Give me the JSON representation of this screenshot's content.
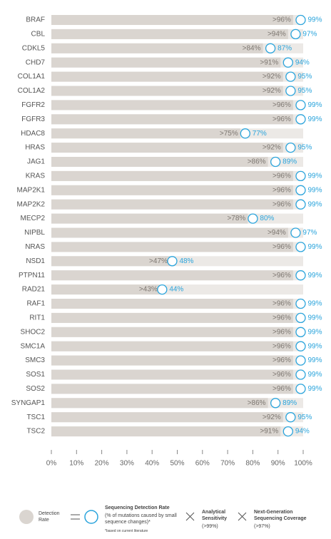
{
  "chart_data": {
    "type": "bar",
    "categories": [
      "BRAF",
      "CBL",
      "CDKL5",
      "CHD7",
      "COL1A1",
      "COL1A2",
      "FGFR2",
      "FGFR3",
      "HDAC8",
      "HRAS",
      "JAG1",
      "KRAS",
      "MAP2K1",
      "MAP2K2",
      "MECP2",
      "NIPBL",
      "NRAS",
      "NSD1",
      "PTPN11",
      "RAD21",
      "RAF1",
      "RIT1",
      "SHOC2",
      "SMC1A",
      "SMC3",
      "SOS1",
      "SOS2",
      "SYNGAP1",
      "TSC1",
      "TSC2"
    ],
    "series": [
      {
        "name": "Detection Rate",
        "color": "#dad5d0",
        "values": [
          96,
          94,
          84,
          91,
          92,
          92,
          96,
          96,
          75,
          92,
          86,
          96,
          96,
          96,
          78,
          94,
          96,
          47,
          96,
          43,
          96,
          96,
          96,
          96,
          96,
          96,
          96,
          86,
          92,
          91
        ],
        "value_labels": [
          ">96%",
          ">94%",
          ">84%",
          ">91%",
          ">92%",
          ">92%",
          ">96%",
          ">96%",
          ">75%",
          ">92%",
          ">86%",
          ">96%",
          ">96%",
          ">96%",
          ">78%",
          ">94%",
          ">96%",
          ">47%",
          ">96%",
          ">43%",
          ">96%",
          ">96%",
          ">96%",
          ">96%",
          ">96%",
          ">96%",
          ">96%",
          ">86%",
          ">92%",
          ">91%"
        ]
      },
      {
        "name": "Sequencing Detection Rate",
        "color": "#2aa4dc",
        "values": [
          99,
          97,
          87,
          94,
          95,
          95,
          99,
          99,
          77,
          95,
          89,
          99,
          99,
          99,
          80,
          97,
          99,
          48,
          99,
          44,
          99,
          99,
          99,
          99,
          99,
          99,
          99,
          89,
          95,
          94
        ],
        "value_labels": [
          "99%",
          "97%",
          "87%",
          "94%",
          "95%",
          "95%",
          "99%",
          "99%",
          "77%",
          "95%",
          "89%",
          "99%",
          "99%",
          "99%",
          "80%",
          "97%",
          "99%",
          "48%",
          "99%",
          "44%",
          "99%",
          "99%",
          "99%",
          "99%",
          "99%",
          "99%",
          "99%",
          "89%",
          "95%",
          "94%"
        ]
      }
    ],
    "xlim": [
      0,
      100
    ],
    "xticks": [
      {
        "value": 0,
        "label": "0%"
      },
      {
        "value": 10,
        "label": "10%"
      },
      {
        "value": 20,
        "label": "20%"
      },
      {
        "value": 30,
        "label": "30%"
      },
      {
        "value": 40,
        "label": "40%"
      },
      {
        "value": 50,
        "label": "50%"
      },
      {
        "value": 60,
        "label": "60%"
      },
      {
        "value": 70,
        "label": "70%"
      },
      {
        "value": 80,
        "label": "80%"
      },
      {
        "value": 90,
        "label": "90%"
      },
      {
        "value": 100,
        "label": "100%"
      }
    ],
    "legend": {
      "sequencing_note": "(% of mutations caused by small sequence changes)*",
      "analytical": "Analytical Sensitivity",
      "analytical_value": "(>99%)",
      "ngs": "Next-Generation Sequencing Coverage",
      "ngs_value": "(>97%)",
      "footnote": "*based on current literature"
    }
  }
}
